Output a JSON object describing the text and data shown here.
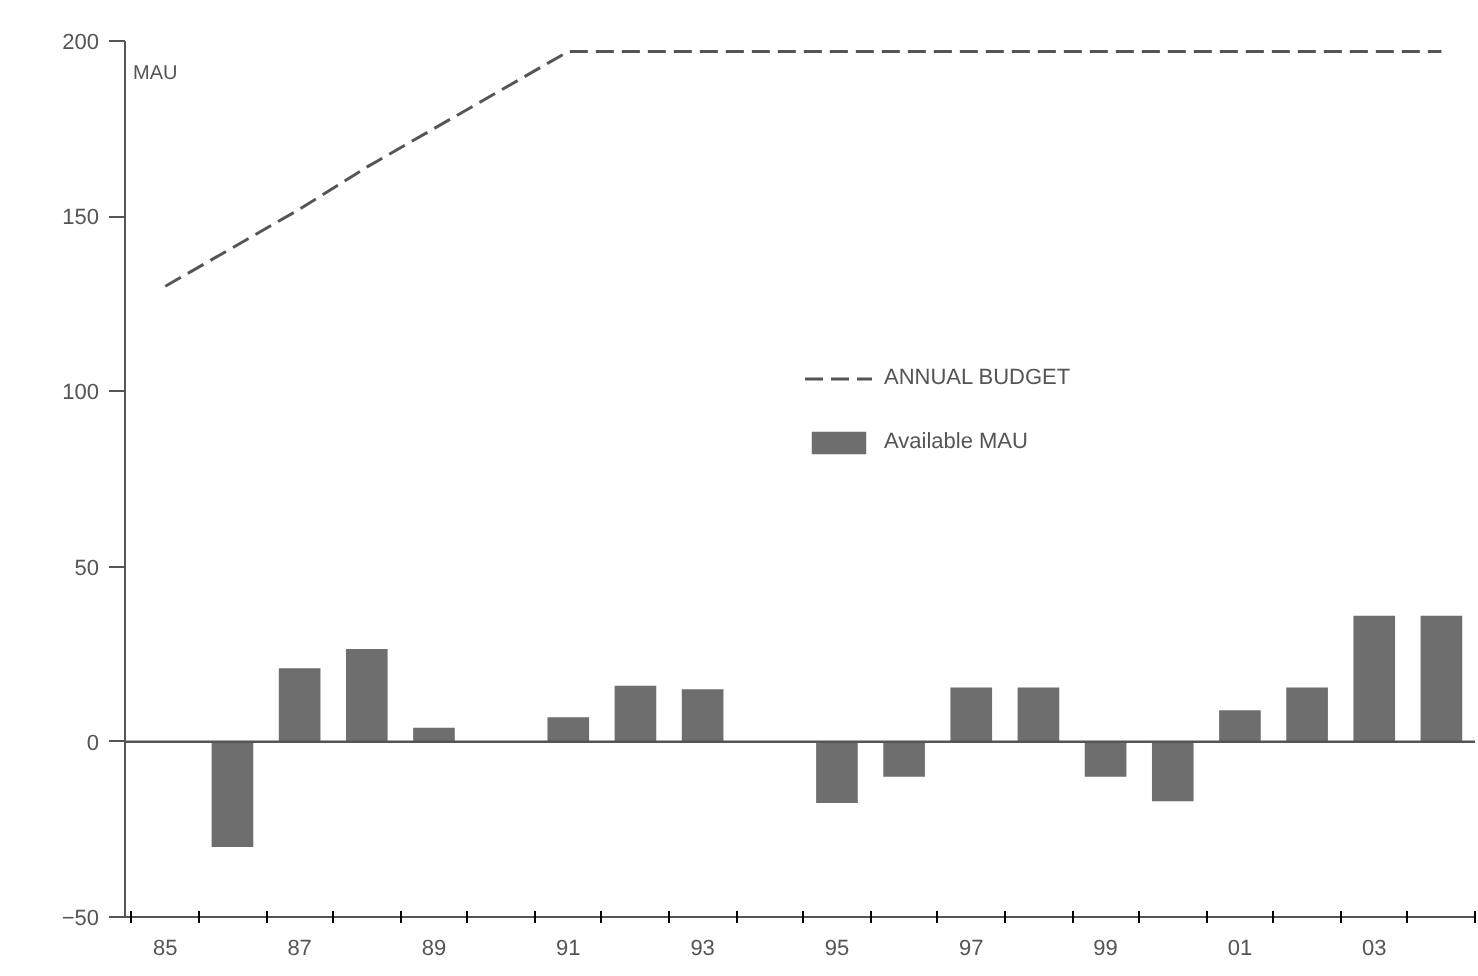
{
  "chart_data": {
    "type": "bar",
    "ylabel": "MAU",
    "categories": [
      "85",
      null,
      "87",
      null,
      "89",
      null,
      "91",
      null,
      "93",
      null,
      "95",
      null,
      "97",
      null,
      "99",
      null,
      "01",
      null,
      "03",
      null
    ],
    "series": [
      {
        "name": "ANNUAL BUDGET",
        "type": "line",
        "color": "#555555",
        "line_style": "dashed",
        "values": [
          130,
          141,
          152,
          164,
          175,
          186,
          197,
          197,
          197,
          197,
          197,
          197,
          197,
          197,
          197,
          197,
          197,
          197,
          197,
          197
        ]
      },
      {
        "name": "Available MAU",
        "color": "#6e6e6e",
        "values": [
          null,
          -30,
          21,
          26.5,
          4,
          null,
          7,
          16,
          15,
          null,
          -17.5,
          -10,
          15.5,
          15.5,
          -10,
          -17,
          9,
          15.5,
          36,
          36
        ]
      }
    ],
    "ylim": [
      -50,
      200
    ],
    "yticks": [
      -50,
      0,
      50,
      100,
      150,
      200
    ],
    "ref_lines": [
      {
        "axis": "y",
        "value": 0,
        "color": "#555555"
      }
    ],
    "grid": false,
    "legend": "right"
  }
}
